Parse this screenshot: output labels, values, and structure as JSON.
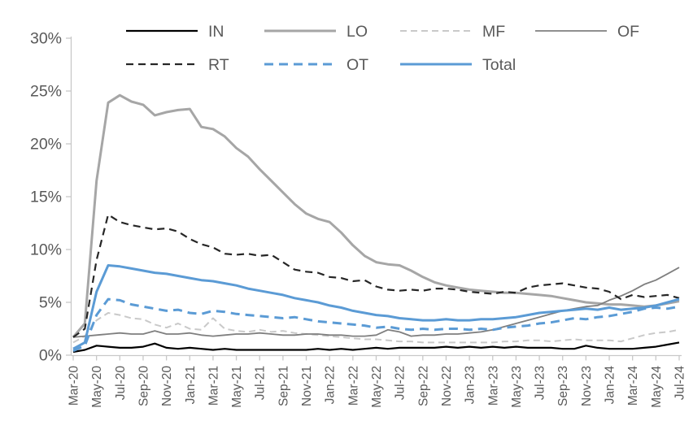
{
  "page": {
    "background": "#FFFFFF"
  },
  "chart_data": {
    "type": "line",
    "title": "",
    "xlabel": "",
    "ylabel": "",
    "ylim": [
      0,
      30
    ],
    "ytick_step": 5,
    "ytick_suffix": "%",
    "x_tick_every": 2,
    "grid": false,
    "axis_color": "#C8C8C8",
    "label_color": "#595959",
    "x_labels": [
      "Mar-20",
      "Apr-20",
      "May-20",
      "Jun-20",
      "Jul-20",
      "Aug-20",
      "Sep-20",
      "Oct-20",
      "Nov-20",
      "Dec-20",
      "Jan-21",
      "Feb-21",
      "Mar-21",
      "Apr-21",
      "May-21",
      "Jun-21",
      "Jul-21",
      "Aug-21",
      "Sep-21",
      "Oct-21",
      "Nov-21",
      "Dec-21",
      "Jan-22",
      "Feb-22",
      "Mar-22",
      "Apr-22",
      "May-22",
      "Jun-22",
      "Jul-22",
      "Aug-22",
      "Sep-22",
      "Oct-22",
      "Nov-22",
      "Dec-22",
      "Jan-23",
      "Feb-23",
      "Mar-23",
      "Apr-23",
      "May-23",
      "Jun-23",
      "Jul-23",
      "Aug-23",
      "Sep-23",
      "Oct-23",
      "Nov-23",
      "Dec-23",
      "Jan-24",
      "Feb-24",
      "Mar-24",
      "Apr-24",
      "May-24",
      "Jun-24",
      "Jul-24"
    ],
    "legend": {
      "rows": [
        [
          "IN",
          "LO",
          "MF",
          "OF"
        ],
        [
          "RT",
          "OT",
          "Total"
        ]
      ]
    },
    "series": [
      {
        "name": "IN",
        "color": "#000000",
        "width": 2.2,
        "dash": null,
        "values": [
          0.3,
          0.5,
          0.9,
          0.8,
          0.7,
          0.7,
          0.8,
          1.1,
          0.7,
          0.6,
          0.7,
          0.6,
          0.5,
          0.6,
          0.5,
          0.5,
          0.5,
          0.5,
          0.5,
          0.5,
          0.5,
          0.6,
          0.5,
          0.6,
          0.5,
          0.6,
          0.7,
          0.6,
          0.7,
          0.7,
          0.7,
          0.7,
          0.8,
          0.7,
          0.8,
          0.7,
          0.8,
          0.7,
          0.8,
          0.7,
          0.7,
          0.7,
          0.6,
          0.6,
          0.9,
          0.7,
          0.6,
          0.6,
          0.6,
          0.7,
          0.8,
          1.0,
          1.2
        ]
      },
      {
        "name": "LO",
        "color": "#A6A6A6",
        "width": 3,
        "dash": null,
        "values": [
          1.7,
          3.0,
          16.5,
          23.9,
          24.6,
          24.0,
          23.7,
          22.7,
          23.0,
          23.2,
          23.3,
          21.6,
          21.4,
          20.7,
          19.6,
          18.8,
          17.6,
          16.5,
          15.4,
          14.3,
          13.4,
          12.9,
          12.6,
          11.6,
          10.4,
          9.4,
          8.8,
          8.6,
          8.5,
          8.0,
          7.4,
          6.9,
          6.6,
          6.4,
          6.2,
          6.1,
          6.0,
          5.9,
          5.9,
          5.8,
          5.7,
          5.6,
          5.4,
          5.2,
          5.0,
          4.9,
          4.8,
          4.8,
          4.7,
          4.6,
          4.7,
          4.9,
          5.1
        ]
      },
      {
        "name": "MF",
        "color": "#C9C9C9",
        "width": 2,
        "dash": "8 5",
        "values": [
          1.2,
          1.8,
          3.3,
          4.0,
          3.8,
          3.5,
          3.4,
          2.9,
          2.6,
          3.0,
          2.5,
          2.4,
          3.5,
          2.5,
          2.3,
          2.2,
          2.4,
          2.2,
          2.3,
          2.1,
          2.0,
          1.9,
          1.8,
          1.7,
          1.6,
          1.5,
          1.5,
          1.4,
          1.3,
          1.3,
          1.2,
          1.2,
          1.2,
          1.2,
          1.2,
          1.2,
          1.2,
          1.3,
          1.3,
          1.4,
          1.4,
          1.3,
          1.4,
          1.5,
          1.4,
          1.4,
          1.4,
          1.3,
          1.6,
          1.9,
          2.1,
          2.2,
          2.4
        ]
      },
      {
        "name": "OF",
        "color": "#7F7F7F",
        "width": 1.8,
        "dash": null,
        "values": [
          1.7,
          1.8,
          1.9,
          2.0,
          2.1,
          2.0,
          2.0,
          2.3,
          2.0,
          2.0,
          2.1,
          1.9,
          1.8,
          1.9,
          2.0,
          2.0,
          2.1,
          2.0,
          1.9,
          1.9,
          2.0,
          2.0,
          1.9,
          1.9,
          1.8,
          1.8,
          1.9,
          2.4,
          2.2,
          1.8,
          1.9,
          1.9,
          2.0,
          2.0,
          2.1,
          2.2,
          2.4,
          2.7,
          3.0,
          3.3,
          3.6,
          3.9,
          4.2,
          4.4,
          4.6,
          4.7,
          5.2,
          5.6,
          6.1,
          6.7,
          7.1,
          7.7,
          8.3
        ]
      },
      {
        "name": "RT",
        "color": "#262626",
        "width": 2.2,
        "dash": "9 6",
        "values": [
          1.7,
          2.5,
          9.0,
          13.3,
          12.6,
          12.3,
          12.1,
          11.9,
          12.0,
          11.7,
          11.0,
          10.5,
          10.2,
          9.6,
          9.5,
          9.6,
          9.4,
          9.5,
          8.8,
          8.1,
          7.9,
          7.8,
          7.4,
          7.3,
          7.0,
          7.1,
          6.5,
          6.2,
          6.1,
          6.2,
          6.1,
          6.3,
          6.3,
          6.2,
          6.0,
          5.9,
          5.8,
          6.0,
          5.9,
          6.4,
          6.6,
          6.7,
          6.8,
          6.6,
          6.4,
          6.3,
          6.0,
          5.3,
          5.7,
          5.5,
          5.6,
          5.7,
          5.4
        ]
      },
      {
        "name": "OT",
        "color": "#5B9BD5",
        "width": 3,
        "dash": "11 7",
        "values": [
          0.4,
          0.9,
          3.8,
          5.3,
          5.2,
          4.8,
          4.6,
          4.4,
          4.2,
          4.3,
          4.0,
          3.9,
          4.2,
          4.1,
          3.9,
          3.8,
          3.7,
          3.6,
          3.5,
          3.6,
          3.4,
          3.2,
          3.1,
          3.0,
          2.9,
          2.8,
          2.6,
          2.7,
          2.5,
          2.4,
          2.5,
          2.4,
          2.5,
          2.5,
          2.4,
          2.5,
          2.4,
          2.6,
          2.7,
          2.8,
          3.0,
          3.1,
          3.3,
          3.5,
          3.4,
          3.6,
          3.7,
          3.9,
          4.1,
          4.4,
          4.5,
          4.4,
          4.6
        ]
      },
      {
        "name": "Total",
        "color": "#5B9BD5",
        "width": 3,
        "dash": null,
        "values": [
          0.6,
          1.2,
          6.0,
          8.5,
          8.4,
          8.2,
          8.0,
          7.8,
          7.7,
          7.5,
          7.3,
          7.1,
          7.0,
          6.8,
          6.6,
          6.3,
          6.1,
          5.9,
          5.7,
          5.4,
          5.2,
          5.0,
          4.7,
          4.5,
          4.2,
          4.0,
          3.8,
          3.7,
          3.5,
          3.4,
          3.3,
          3.3,
          3.4,
          3.3,
          3.3,
          3.4,
          3.4,
          3.5,
          3.6,
          3.8,
          4.0,
          4.1,
          4.2,
          4.3,
          4.4,
          4.3,
          4.5,
          4.3,
          4.4,
          4.5,
          4.7,
          5.0,
          5.3
        ]
      }
    ]
  }
}
